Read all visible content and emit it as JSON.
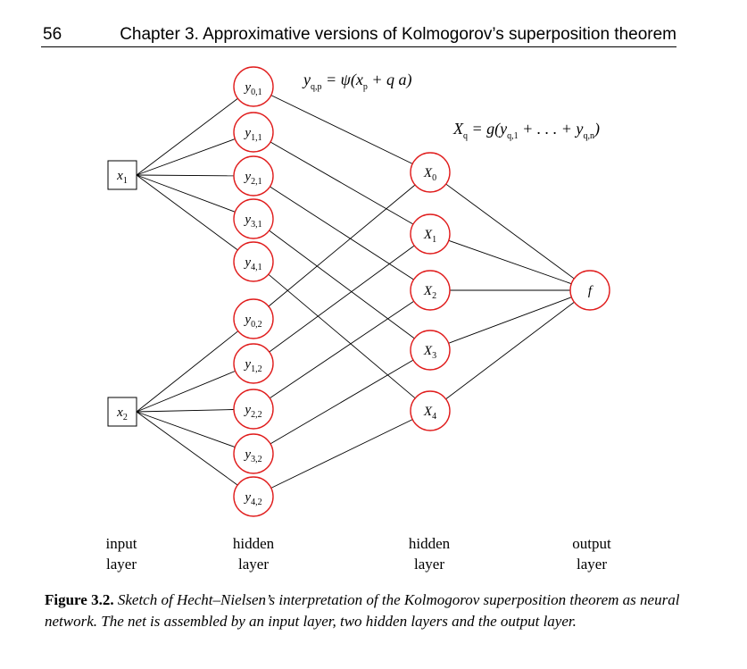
{
  "header": {
    "page_number": "56",
    "chapter_title": "Chapter 3.  Approximative versions of Kolmogorov’s superposition theorem"
  },
  "diagram": {
    "inputs": [
      {
        "base": "x",
        "sub": "1"
      },
      {
        "base": "x",
        "sub": "2"
      }
    ],
    "hidden1": [
      {
        "base": "y",
        "sub": "0,1"
      },
      {
        "base": "y",
        "sub": "1,1"
      },
      {
        "base": "y",
        "sub": "2,1"
      },
      {
        "base": "y",
        "sub": "3,1"
      },
      {
        "base": "y",
        "sub": "4,1"
      },
      {
        "base": "y",
        "sub": "0,2"
      },
      {
        "base": "y",
        "sub": "1,2"
      },
      {
        "base": "y",
        "sub": "2,2"
      },
      {
        "base": "y",
        "sub": "3,2"
      },
      {
        "base": "y",
        "sub": "4,2"
      }
    ],
    "hidden2": [
      {
        "base": "X",
        "sub": "0"
      },
      {
        "base": "X",
        "sub": "1"
      },
      {
        "base": "X",
        "sub": "2"
      },
      {
        "base": "X",
        "sub": "3"
      },
      {
        "base": "X",
        "sub": "4"
      }
    ],
    "output": {
      "base": "f"
    },
    "formula_y": {
      "lhs": "y",
      "lhs_sub": "q,p",
      "rhs": " = ψ(x",
      "rhs_sub": "p",
      "rhs_tail": " + q a)"
    },
    "formula_x": {
      "lhs": "X",
      "lhs_sub": "q",
      "mid1": " = g(y",
      "sub1": "q,1",
      "mid2": " + . . . + y",
      "sub2": "q,n",
      "tail": ")"
    },
    "colors": {
      "node_stroke": "#e01c1c",
      "edge": "#000000"
    }
  },
  "layers": {
    "input": [
      "input",
      "layer"
    ],
    "hidden1": [
      "hidden",
      "layer"
    ],
    "hidden2": [
      "hidden",
      "layer"
    ],
    "output": [
      "output",
      "layer"
    ]
  },
  "caption": {
    "figure_label": "Figure 3.2.",
    "text": "Sketch of Hecht–Nielsen’s interpretation of the Kolmogorov superposition theorem as neural network. The net is assembled by an input layer, two hidden layers and the output layer."
  }
}
